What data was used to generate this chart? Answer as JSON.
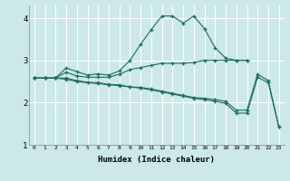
{
  "xlabel": "Humidex (Indice chaleur)",
  "bg_color": "#cce8e8",
  "line_color": "#1e6b5e",
  "grid_color": "#ffffff",
  "xlim": [
    -0.5,
    23.5
  ],
  "ylim": [
    1.0,
    4.3
  ],
  "yticks": [
    1,
    2,
    3,
    4
  ],
  "xticks": [
    0,
    1,
    2,
    3,
    4,
    5,
    6,
    7,
    8,
    9,
    10,
    11,
    12,
    13,
    14,
    15,
    16,
    17,
    18,
    19,
    20,
    21,
    22,
    23
  ],
  "line1_x": [
    0,
    1,
    2,
    3,
    4,
    5,
    6,
    7,
    8,
    9,
    10,
    11,
    12,
    13,
    14,
    15,
    16,
    17,
    18,
    19,
    20
  ],
  "line1_y": [
    2.58,
    2.58,
    2.58,
    2.82,
    2.73,
    2.65,
    2.68,
    2.65,
    2.75,
    3.0,
    3.38,
    3.73,
    4.05,
    4.05,
    3.88,
    4.05,
    3.75,
    3.3,
    3.05,
    3.0,
    3.0
  ],
  "line2_x": [
    0,
    1,
    2,
    3,
    4,
    5,
    6,
    7,
    8,
    9,
    10,
    11,
    12,
    13,
    14,
    15,
    16,
    17,
    18,
    19,
    20
  ],
  "line2_y": [
    2.58,
    2.58,
    2.58,
    2.72,
    2.63,
    2.6,
    2.6,
    2.6,
    2.67,
    2.78,
    2.83,
    2.88,
    2.93,
    2.93,
    2.93,
    2.95,
    3.0,
    3.0,
    3.0,
    3.0,
    3.0
  ],
  "line3_x": [
    0,
    1,
    2,
    3,
    4,
    5,
    6,
    7,
    8,
    9,
    10,
    11,
    12,
    13,
    14,
    15,
    16,
    17,
    18,
    19,
    20,
    21,
    22,
    23
  ],
  "line3_y": [
    2.58,
    2.58,
    2.58,
    2.58,
    2.52,
    2.48,
    2.47,
    2.43,
    2.42,
    2.37,
    2.36,
    2.32,
    2.27,
    2.22,
    2.17,
    2.12,
    2.1,
    2.07,
    2.03,
    1.82,
    1.82,
    2.67,
    2.52,
    1.42
  ],
  "line4_x": [
    0,
    1,
    2,
    3,
    4,
    5,
    6,
    7,
    8,
    9,
    10,
    11,
    12,
    13,
    14,
    15,
    16,
    17,
    18,
    19,
    20,
    21,
    22,
    23
  ],
  "line4_y": [
    2.58,
    2.58,
    2.58,
    2.55,
    2.5,
    2.47,
    2.45,
    2.42,
    2.4,
    2.37,
    2.34,
    2.3,
    2.25,
    2.2,
    2.15,
    2.1,
    2.07,
    2.03,
    1.98,
    1.75,
    1.75,
    2.6,
    2.47,
    1.42
  ]
}
